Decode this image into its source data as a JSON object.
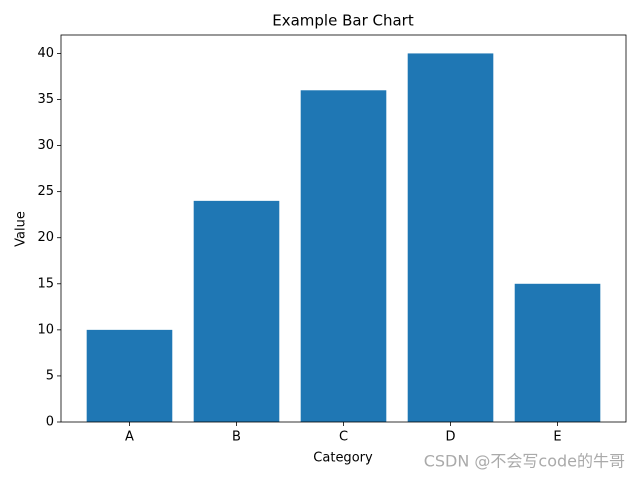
{
  "chart_data": {
    "type": "bar",
    "title": "Example Bar Chart",
    "x_label": "Category",
    "y_label": "Value",
    "categories": [
      "A",
      "B",
      "C",
      "D",
      "E"
    ],
    "values": [
      10,
      24,
      36,
      40,
      15
    ],
    "color": "#1f77b4",
    "ylim": [
      0,
      42
    ],
    "yticks": [
      0,
      5,
      10,
      15,
      20,
      25,
      30,
      35,
      40
    ],
    "grid": false
  },
  "watermark": "CSDN @不会写code的牛哥"
}
